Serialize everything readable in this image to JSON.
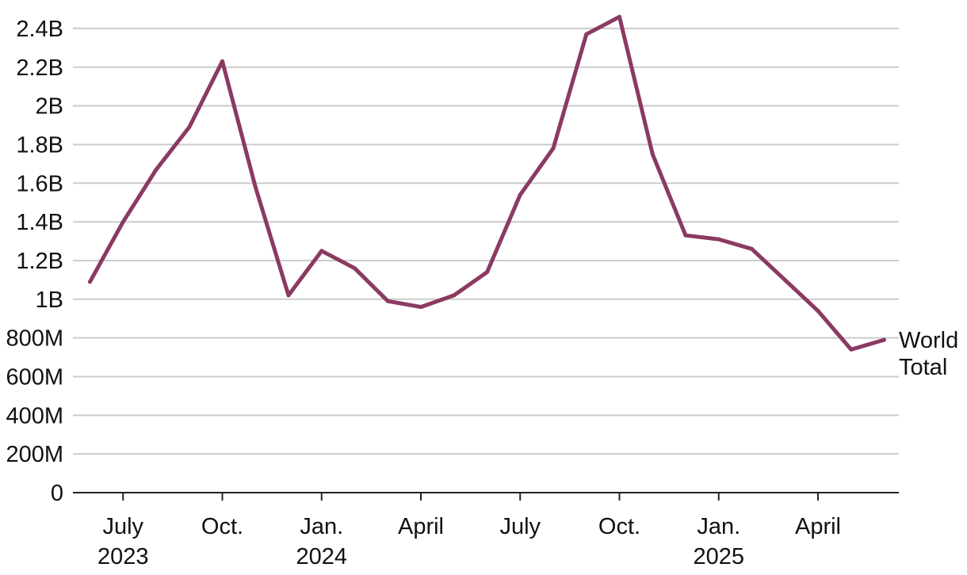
{
  "chart_data": {
    "type": "line",
    "title": "",
    "xlabel": "",
    "ylabel": "",
    "x": [
      "2023-06",
      "2023-07",
      "2023-08",
      "2023-09",
      "2023-10",
      "2023-11",
      "2023-12",
      "2024-01",
      "2024-02",
      "2024-03",
      "2024-04",
      "2024-05",
      "2024-06",
      "2024-07",
      "2024-08",
      "2024-09",
      "2024-10",
      "2024-11",
      "2024-12",
      "2025-01",
      "2025-02",
      "2025-03",
      "2025-04",
      "2025-05",
      "2025-06"
    ],
    "series": [
      {
        "name": "World Total",
        "color": "#8b3a62",
        "values": [
          1.09,
          1.4,
          1.67,
          1.89,
          2.23,
          1.58,
          1.02,
          1.25,
          1.16,
          0.99,
          0.96,
          1.02,
          1.14,
          1.54,
          1.78,
          2.37,
          2.46,
          1.75,
          1.33,
          1.31,
          1.26,
          1.1,
          0.94,
          0.74,
          0.79
        ]
      }
    ],
    "series_label_lines": [
      "World",
      "Total"
    ],
    "y_ticks": [
      {
        "value": 0,
        "label": "0"
      },
      {
        "value": 0.2,
        "label": "200M"
      },
      {
        "value": 0.4,
        "label": "400M"
      },
      {
        "value": 0.6,
        "label": "600M"
      },
      {
        "value": 0.8,
        "label": "800M"
      },
      {
        "value": 1.0,
        "label": "1B"
      },
      {
        "value": 1.2,
        "label": "1.2B"
      },
      {
        "value": 1.4,
        "label": "1.4B"
      },
      {
        "value": 1.6,
        "label": "1.6B"
      },
      {
        "value": 1.8,
        "label": "1.8B"
      },
      {
        "value": 2.0,
        "label": "2B"
      },
      {
        "value": 2.2,
        "label": "2.2B"
      },
      {
        "value": 2.4,
        "label": "2.4B"
      }
    ],
    "x_ticks": [
      {
        "index": 1,
        "line1": "July",
        "line2": "2023"
      },
      {
        "index": 4,
        "line1": "Oct.",
        "line2": ""
      },
      {
        "index": 7,
        "line1": "Jan.",
        "line2": "2024"
      },
      {
        "index": 10,
        "line1": "April",
        "line2": ""
      },
      {
        "index": 13,
        "line1": "July",
        "line2": ""
      },
      {
        "index": 16,
        "line1": "Oct.",
        "line2": ""
      },
      {
        "index": 19,
        "line1": "Jan.",
        "line2": "2025"
      },
      {
        "index": 22,
        "line1": "April",
        "line2": ""
      }
    ],
    "ylim": [
      0,
      2.45
    ],
    "grid": true,
    "colors": {
      "grid": "#cccccc",
      "axis": "#222222",
      "text": "#111111"
    }
  }
}
